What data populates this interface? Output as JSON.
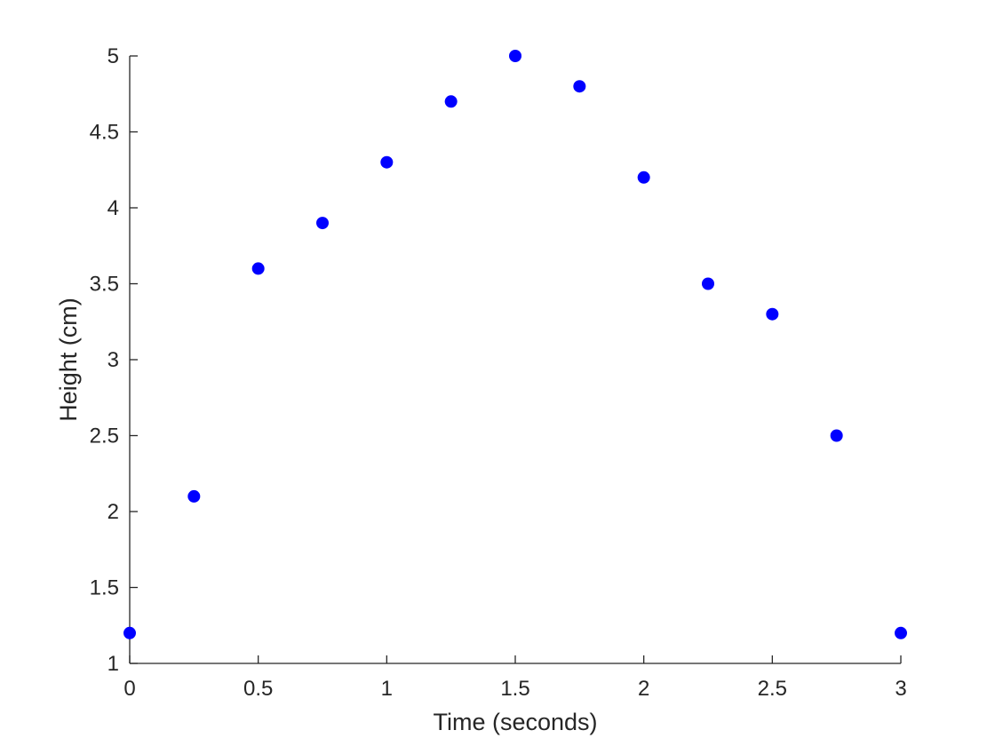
{
  "chart_data": {
    "type": "scatter",
    "title": "",
    "xlabel": "Time (seconds)",
    "ylabel": "Height (cm)",
    "xlim": [
      0,
      3
    ],
    "ylim": [
      1,
      5
    ],
    "grid": false,
    "marker_color": "#0000ff",
    "axis_color": "#262626",
    "x_ticks": [
      0,
      0.5,
      1,
      1.5,
      2,
      2.5,
      3
    ],
    "y_ticks": [
      1,
      1.5,
      2,
      2.5,
      3,
      3.5,
      4,
      4.5,
      5
    ],
    "x_tick_labels": [
      "0",
      "0.5",
      "1",
      "1.5",
      "2",
      "2.5",
      "3"
    ],
    "y_tick_labels": [
      "1",
      "1.5",
      "2",
      "2.5",
      "3",
      "3.5",
      "4",
      "4.5",
      "5"
    ],
    "x": [
      0,
      0.25,
      0.5,
      0.75,
      1.0,
      1.25,
      1.5,
      1.75,
      2.0,
      2.25,
      2.5,
      2.75,
      3.0
    ],
    "y": [
      1.2,
      2.1,
      3.6,
      3.9,
      4.3,
      4.7,
      5.0,
      4.8,
      4.2,
      3.5,
      3.3,
      2.5,
      1.2
    ]
  }
}
